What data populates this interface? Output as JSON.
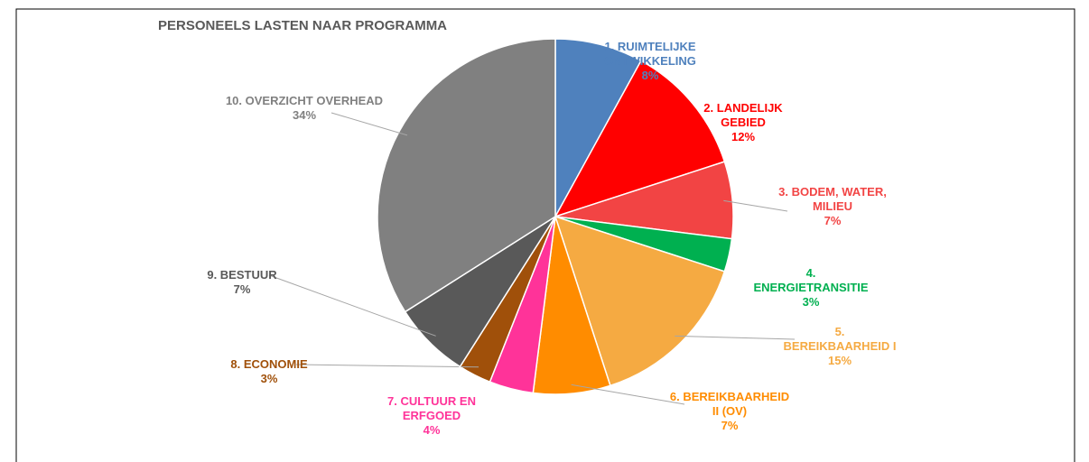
{
  "chart_data": {
    "type": "pie",
    "title": "PERSONEELS LASTEN NAAR PROGRAMMA",
    "categories": [
      "1. RUIMTELIJKE ONTWIKKELING",
      "2. LANDELIJK GEBIED",
      "3. BODEM, WATER, MILIEU",
      "4. ENERGIETRANSITIE",
      "5. BEREIKBAARHEID I",
      "6. BEREIKBAARHEID II (OV)",
      "7. CULTUUR EN ERFGOED",
      "8. ECONOMIE",
      "9. BESTUUR",
      "10. OVERZICHT OVERHEAD"
    ],
    "values": [
      8,
      12,
      7,
      3,
      15,
      7,
      4,
      3,
      7,
      34
    ],
    "value_labels": [
      "8%",
      "12%",
      "7%",
      "3%",
      "15%",
      "7%",
      "4%",
      "3%",
      "7%",
      "34%"
    ],
    "colors": [
      "#4f81bd",
      "#ff0000",
      "#f24444",
      "#00b050",
      "#f5aa42",
      "#ff8c00",
      "#ff3399",
      "#a0500a",
      "#595959",
      "#808080"
    ]
  }
}
